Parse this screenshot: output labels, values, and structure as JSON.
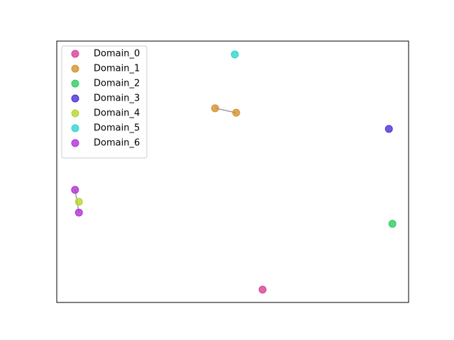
{
  "chart_data": {
    "type": "scatter",
    "xlim": [
      0,
      100
    ],
    "ylim": [
      0,
      100
    ],
    "legend": "upper left",
    "series": [
      {
        "name": "Domain_0",
        "color": "#d8409a",
        "x": [
          58.5
        ],
        "y": [
          4.9
        ]
      },
      {
        "name": "Domain_1",
        "color": "#d4912f",
        "x": [
          45.0,
          51.0
        ],
        "y": [
          74.3,
          72.6
        ]
      },
      {
        "name": "Domain_2",
        "color": "#2ecc5f",
        "x": [
          95.4
        ],
        "y": [
          30.1
        ]
      },
      {
        "name": "Domain_3",
        "color": "#4b2fd8",
        "x": [
          94.4
        ],
        "y": [
          66.4
        ]
      },
      {
        "name": "Domain_4",
        "color": "#b5d52f",
        "x": [
          6.3
        ],
        "y": [
          38.5
        ]
      },
      {
        "name": "Domain_5",
        "color": "#2fd4cf",
        "x": [
          50.6
        ],
        "y": [
          94.9
        ]
      },
      {
        "name": "Domain_6",
        "color": "#b22fd4",
        "x": [
          5.2,
          6.3
        ],
        "y": [
          43.1,
          34.4
        ]
      }
    ]
  }
}
